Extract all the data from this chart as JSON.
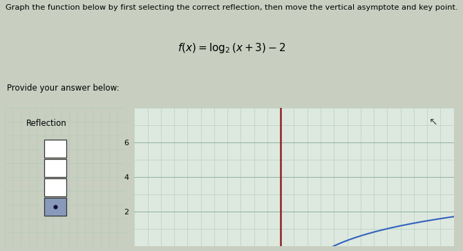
{
  "title_text": "Graph the function below by first selecting the correct reflection, then move the vertical asymptote and key point.",
  "formula_text": "f(x) = log_2(x + 3) - 2",
  "provide_text": "Provide your answer below:",
  "reflection_label": "Reflection",
  "outer_bg": "#c8cfc0",
  "graph_bg": "#dde8de",
  "grid_color_fine": "#b0c8bc",
  "grid_color_major": "#90b0a0",
  "asymptote_color": "#8B2020",
  "curve_color": "#3060c0",
  "ytick_labels": [
    "2",
    "4",
    "6"
  ],
  "ytick_vals": [
    2,
    4,
    6
  ],
  "graph_xlim": [
    -14,
    10
  ],
  "graph_ylim": [
    0,
    8
  ]
}
